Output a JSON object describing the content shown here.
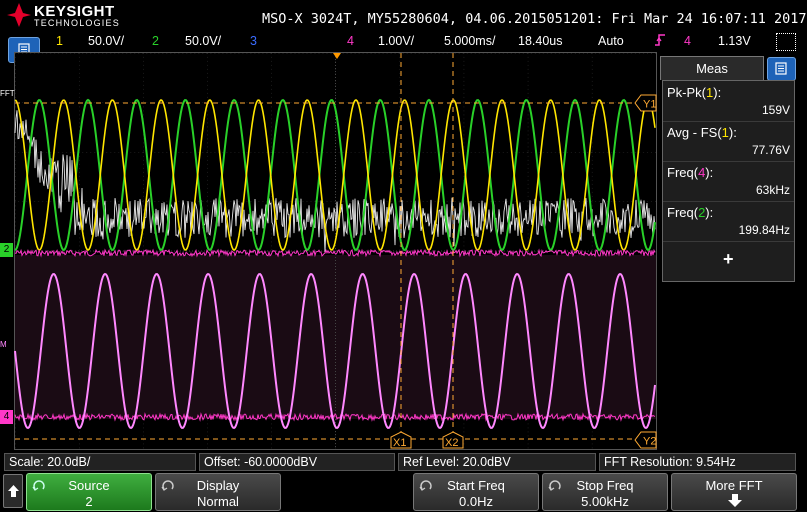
{
  "header": {
    "brand": "KEYSIGHT",
    "brand_sub": "TECHNOLOGIES",
    "title": "MSO-X 3024T, MY55280604, 04.06.2015051201: Fri Mar 24 16:07:11 2017"
  },
  "channel_bar": {
    "ch1_num": "1",
    "ch1_scale": "50.0V/",
    "ch2_num": "2",
    "ch2_scale": "50.0V/",
    "ch3_num": "3",
    "ch4_num": "4",
    "ch4_scale": "1.00V/",
    "timebase": "5.000ms/",
    "delay": "18.40us",
    "trigger_mode": "Auto",
    "trigger_source": "4",
    "trigger_level": "1.13V"
  },
  "markers": {
    "fft": "FFT",
    "ch2": "2",
    "ch4": "4",
    "math": "M",
    "y1": "Y1",
    "y2": "Y2",
    "x1": "X1",
    "x2": "X2"
  },
  "measurements": {
    "tab_label": "Meas",
    "items": [
      {
        "name": "Pk-Pk(",
        "channel": "1",
        "close": "):",
        "value": "159V"
      },
      {
        "name": "Avg - FS(",
        "channel": "1",
        "close": "):",
        "value": "77.76V"
      },
      {
        "name": "Freq(",
        "channel": "4",
        "close": "):",
        "value": "63kHz"
      },
      {
        "name": "Freq(",
        "channel": "2",
        "close": "):",
        "value": "199.84Hz"
      }
    ],
    "add_label": "+"
  },
  "status": {
    "scale": "Scale: 20.0dB/",
    "offset": "Offset: -60.0000dBV",
    "ref_level": "Ref Level: 20.0dBV",
    "fft_res": "FFT Resolution: 9.54Hz"
  },
  "softkeys": {
    "source_label": "Source",
    "source_value": "2",
    "display_label": "Display",
    "display_value": "Normal",
    "start_label": "Start Freq",
    "start_value": "0.0Hz",
    "stop_label": "Stop Freq",
    "stop_value": "5.00kHz",
    "more_label": "More FFT"
  },
  "colors": {
    "ch1": "#ffe600",
    "ch2": "#29d129",
    "ch3": "#3a6cff",
    "ch4": "#ff38c8",
    "math": "#ff88ff",
    "cursor": "#ffaa33"
  },
  "icons": [
    "keysight-logo-icon",
    "menu-icon",
    "grid-icon",
    "trigger-edge-icon",
    "knob-icon",
    "up-arrow-icon",
    "down-arrow-icon"
  ]
}
